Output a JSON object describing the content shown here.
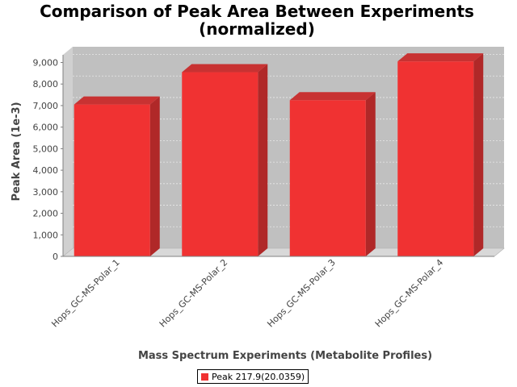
{
  "chart_data": {
    "type": "bar",
    "title": "Comparison of Peak Area Between Experiments (normalized)",
    "title_lines": [
      "Comparison of Peak Area Between Experiments",
      "(normalized)"
    ],
    "xlabel": "Mass Spectrum Experiments (Metabolite Profiles)",
    "ylabel": "Peak Area (1e-3)",
    "categories": [
      "Hops_GC-MS-Polar_1",
      "Hops_GC-MS-Polar_2",
      "Hops_GC-MS-Polar_3",
      "Hops_GC-MS-Polar_4"
    ],
    "series": [
      {
        "name": "Peak 217.9(20.0359)",
        "values": [
          7050,
          8550,
          7250,
          9050
        ]
      }
    ],
    "ylim": [
      0,
      9000
    ],
    "yticks": [
      0,
      1000,
      2000,
      3000,
      4000,
      5000,
      6000,
      7000,
      8000,
      9000
    ],
    "ytick_labels": [
      "0",
      "1,000",
      "2,000",
      "3,000",
      "4,000",
      "5,000",
      "6,000",
      "7,000",
      "8,000",
      "9,000"
    ],
    "grid": true,
    "legend_position": "bottom",
    "colors": {
      "bar_front": "#f03232",
      "bar_side": "#b02828",
      "bar_top": "#c83232",
      "plot_back": "#c0c0c0",
      "plot_floor": "#d8d8d8",
      "plot_left_wall": "#d0d0d0",
      "gridline": "#e8e8e8"
    }
  }
}
